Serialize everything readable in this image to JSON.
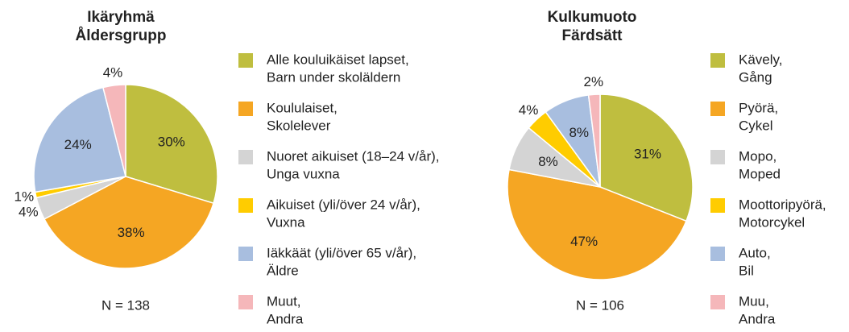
{
  "chart_data": [
    {
      "type": "pie",
      "title": "Ikäryhmä",
      "subtitle": "Åldersgrupp",
      "categories": [
        [
          "Alle kouluikäiset lapset,",
          "Barn under skoläldern"
        ],
        [
          "Koululaiset,",
          "Skolelever"
        ],
        [
          "Nuoret aikuiset (18–24 v/år),",
          "Unga vuxna"
        ],
        [
          "Aikuiset (yli/över 24 v/år),",
          "Vuxna"
        ],
        [
          "Iäkkäät (yli/över 65 v/år),",
          "Äldre"
        ],
        [
          "Muut,",
          "Andra"
        ]
      ],
      "values": [
        30,
        38,
        4,
        1,
        24,
        4
      ],
      "value_labels": [
        "30%",
        "38%",
        "4%",
        "1%",
        "24%",
        "4%"
      ],
      "colors": [
        "#bfbe3f",
        "#f5a623",
        "#d4d4d4",
        "#ffcc00",
        "#a8bedf",
        "#f5b7ba"
      ],
      "annotation": "N = 138"
    },
    {
      "type": "pie",
      "title": "Kulkumuoto",
      "subtitle": "Färdsätt",
      "categories": [
        [
          "Kävely,",
          "Gång"
        ],
        [
          "Pyörä,",
          "Cykel"
        ],
        [
          "Mopo,",
          "Moped"
        ],
        [
          "Moottoripyörä,",
          "Motorcykel"
        ],
        [
          "Auto,",
          "Bil"
        ],
        [
          "Muu,",
          "Andra"
        ]
      ],
      "values": [
        31,
        47,
        8,
        4,
        8,
        2
      ],
      "value_labels": [
        "31%",
        "47%",
        "8%",
        "4%",
        "8%",
        "2%"
      ],
      "colors": [
        "#bfbe3f",
        "#f5a623",
        "#d4d4d4",
        "#ffcc00",
        "#a8bedf",
        "#f5b7ba"
      ],
      "annotation": "N = 106"
    }
  ]
}
